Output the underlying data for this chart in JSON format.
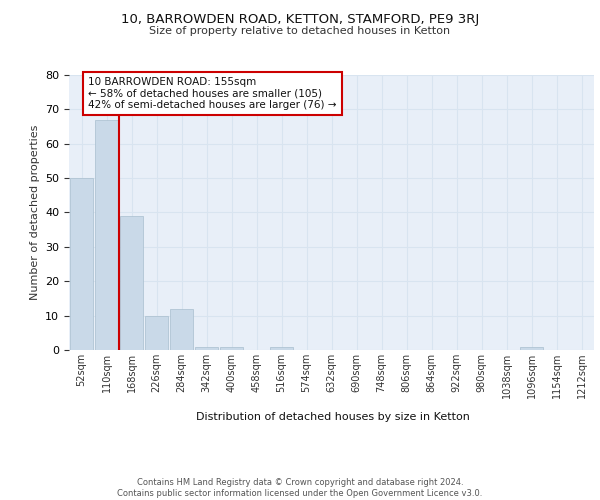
{
  "title1": "10, BARROWDEN ROAD, KETTON, STAMFORD, PE9 3RJ",
  "title2": "Size of property relative to detached houses in Ketton",
  "xlabel": "Distribution of detached houses by size in Ketton",
  "ylabel": "Number of detached properties",
  "bin_labels": [
    "52sqm",
    "110sqm",
    "168sqm",
    "226sqm",
    "284sqm",
    "342sqm",
    "400sqm",
    "458sqm",
    "516sqm",
    "574sqm",
    "632sqm",
    "690sqm",
    "748sqm",
    "806sqm",
    "864sqm",
    "922sqm",
    "980sqm",
    "1038sqm",
    "1096sqm",
    "1154sqm",
    "1212sqm"
  ],
  "bar_values": [
    50,
    67,
    39,
    10,
    12,
    1,
    1,
    0,
    1,
    0,
    0,
    0,
    0,
    0,
    0,
    0,
    0,
    0,
    1,
    0,
    0
  ],
  "bar_color": "#c9d9e8",
  "bar_edge_color": "#a8bece",
  "grid_color": "#d8e4f0",
  "bg_color": "#e8eff8",
  "annotation_text_line1": "10 BARROWDEN ROAD: 155sqm",
  "annotation_text_line2": "← 58% of detached houses are smaller (105)",
  "annotation_text_line3": "42% of semi-detached houses are larger (76) →",
  "annotation_box_color": "#ffffff",
  "annotation_box_edge": "#cc0000",
  "red_line_color": "#cc0000",
  "footer": "Contains HM Land Registry data © Crown copyright and database right 2024.\nContains public sector information licensed under the Open Government Licence v3.0.",
  "ylim": [
    0,
    80
  ],
  "yticks": [
    0,
    10,
    20,
    30,
    40,
    50,
    60,
    70,
    80
  ]
}
